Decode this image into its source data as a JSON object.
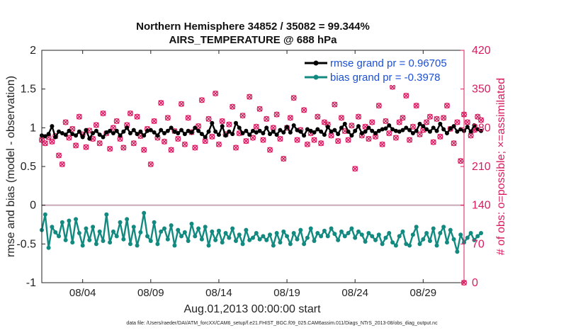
{
  "chart_data": {
    "type": "line",
    "title_line1": "Northern Hemisphere 34852 / 35082 = 99.344%",
    "title_line2": "AIRS_TEMPERATURE @ 688 hPa",
    "xlabel": "Aug.01,2013 00:00:00 start",
    "ylabel_left": "rmse and bias (model - observation)",
    "ylabel_right": "# of obs: o=possible; ×=assimilated",
    "footnote": "data file: /Users/raeder/DAI/ATM_forcXX/CAM6_setup/f.e21.FHIST_BGC.f09_025.CAM6assim.011/Diags_NTrS_2013-08/obs_diag_output.nc",
    "xlim": [
      1,
      32
    ],
    "ylim_left": [
      -1,
      2
    ],
    "ylim_right": [
      0,
      420
    ],
    "x_tick_values": [
      4,
      9,
      14,
      19,
      24,
      29
    ],
    "x_tick_labels": [
      "08/04",
      "08/09",
      "08/14",
      "08/19",
      "08/24",
      "08/29"
    ],
    "y_left_ticks": [
      -1,
      -0.5,
      0,
      0.5,
      1,
      1.5,
      2
    ],
    "y_left_tick_labels": [
      "-1",
      "-0.5",
      "0",
      "0.5",
      "1",
      "1.5",
      "2"
    ],
    "y_right_ticks": [
      0,
      70,
      140,
      210,
      280,
      350,
      420
    ],
    "y_right_tick_labels": [
      "0",
      "70",
      "140",
      "210",
      "280",
      "350",
      "420"
    ],
    "colors": {
      "rmse": "#000000",
      "bias": "#138a80",
      "obs": "#d81b60",
      "zero_line": "#c8a8b4",
      "legend_text": "#1a4fd6"
    },
    "series": [
      {
        "name": "rmse grand pr = 0.96705",
        "axis": "left",
        "x_start": 1.0,
        "x_step": 0.25,
        "values": [
          0.9,
          0.89,
          0.92,
          1.02,
          0.88,
          0.95,
          0.93,
          0.91,
          0.96,
          0.92,
          0.9,
          0.95,
          0.88,
          0.97,
          0.86,
          0.93,
          0.96,
          0.91,
          0.88,
          0.94,
          0.96,
          0.93,
          0.96,
          0.9,
          0.95,
          1.0,
          0.93,
          0.97,
          0.92,
          0.95,
          0.9,
          0.96,
          0.97,
          0.94,
          0.9,
          0.97,
          0.93,
          0.96,
          1.0,
          0.95,
          0.93,
          0.97,
          0.92,
          0.96,
          0.94,
          1.0,
          0.96,
          0.92,
          0.88,
          0.95,
          1.06,
          0.95,
          0.91,
          1.02,
          0.9,
          0.95,
          0.92,
          1.06,
          1.0,
          0.93,
          0.96,
          0.91,
          0.96,
          0.94,
          0.96,
          0.93,
          1.0,
          0.92,
          0.95,
          0.91,
          0.97,
          0.94,
          1.01,
          0.94,
          1.03,
          0.97,
          0.95,
          0.9,
          0.98,
          0.96,
          0.94,
          0.98,
          0.95,
          0.91,
          1.01,
          0.95,
          0.97,
          0.92,
          1.0,
          1.05,
          0.95,
          0.9,
          0.96,
          1.02,
          0.93,
          0.95,
          1.0,
          0.96,
          0.93,
          0.96,
          0.98,
          0.99,
          1.03,
          0.98,
          0.96,
          0.95,
          0.97,
          1.0,
          0.97,
          0.93,
          0.96,
          1.05,
          1.02,
          0.98,
          0.95,
          1.0,
          0.96,
          1.05,
          0.98,
          0.93,
          0.99,
          1.02,
          0.95,
          0.98,
          0.96,
          1.01,
          0.95,
          1.03,
          0.98,
          0.96
        ]
      },
      {
        "name": "bias grand pr = -0.3978",
        "axis": "left",
        "x_start": 1.0,
        "x_step": 0.25,
        "values": [
          -0.32,
          -0.12,
          -0.55,
          -0.28,
          -0.35,
          -0.4,
          -0.22,
          -0.45,
          -0.2,
          -0.48,
          -0.18,
          -0.36,
          -0.52,
          -0.3,
          -0.45,
          -0.28,
          -0.5,
          -0.34,
          -0.46,
          -0.12,
          -0.48,
          -0.34,
          -0.4,
          -0.22,
          -0.44,
          -0.18,
          -0.5,
          -0.28,
          -0.52,
          -0.35,
          -0.1,
          -0.4,
          -0.46,
          -0.22,
          -0.5,
          -0.34,
          -0.3,
          -0.44,
          -0.26,
          -0.52,
          -0.32,
          -0.4,
          -0.35,
          -0.46,
          -0.24,
          -0.4,
          -0.3,
          -0.44,
          -0.28,
          -0.52,
          -0.34,
          -0.45,
          -0.33,
          -0.48,
          -0.36,
          -0.42,
          -0.3,
          -0.46,
          -0.38,
          -0.5,
          -0.32,
          -0.45,
          -0.42,
          -0.36,
          -0.44,
          -0.4,
          -0.45,
          -0.38,
          -0.52,
          -0.36,
          -0.48,
          -0.34,
          -0.4,
          -0.5,
          -0.36,
          -0.44,
          -0.32,
          -0.5,
          -0.42,
          -0.3,
          -0.46,
          -0.36,
          -0.4,
          -0.33,
          -0.4,
          -0.3,
          -0.37,
          -0.45,
          -0.34,
          -0.4,
          -0.36,
          -0.3,
          -0.42,
          -0.34,
          -0.38,
          -0.47,
          -0.36,
          -0.4,
          -0.45,
          -0.38,
          -0.5,
          -0.42,
          -0.36,
          -0.48,
          -0.52,
          -0.4,
          -0.34,
          -0.5,
          -0.52,
          -0.38,
          -0.28,
          -0.5,
          -0.44,
          -0.36,
          -0.46,
          -0.3,
          -0.52,
          -0.36,
          -0.28,
          -0.48,
          -0.32,
          -0.44,
          -0.6,
          -0.38,
          -0.48,
          -0.42,
          -0.36,
          -0.45,
          -0.4,
          -0.36
        ]
      },
      {
        "name": "# of obs possible / assimilated",
        "axis": "right",
        "x_start": 1.0,
        "x_step": 0.25,
        "values": [
          258,
          252,
          263,
          255,
          265,
          230,
          214,
          290,
          262,
          278,
          248,
          300,
          268,
          245,
          275,
          260,
          285,
          252,
          306,
          270,
          242,
          280,
          292,
          260,
          244,
          285,
          306,
          252,
          300,
          265,
          240,
          278,
          214,
          292,
          262,
          325,
          255,
          298,
          240,
          274,
          260,
          323,
          250,
          298,
          272,
          244,
          283,
          330,
          256,
          296,
          264,
          342,
          250,
          292,
          268,
          286,
          318,
          244,
          270,
          302,
          256,
          336,
          262,
          282,
          314,
          258,
          296,
          240,
          280,
          304,
          260,
          224,
          280,
          298,
          334,
          258,
          276,
          312,
          250,
          270,
          258,
          300,
          252,
          290,
          286,
          266,
          322,
          256,
          298,
          274,
          258,
          284,
          206,
          300,
          266,
          282,
          260,
          290,
          264,
          320,
          250,
          292,
          270,
          354,
          262,
          290,
          298,
          338,
          258,
          282,
          320,
          268,
          276,
          290,
          300,
          254,
          296,
          264,
          298,
          320,
          278,
          252,
          290,
          220,
          304,
          290,
          266,
          276,
          300,
          294
        ]
      }
    ],
    "last_point_right": {
      "x": 32,
      "value": 0
    }
  }
}
